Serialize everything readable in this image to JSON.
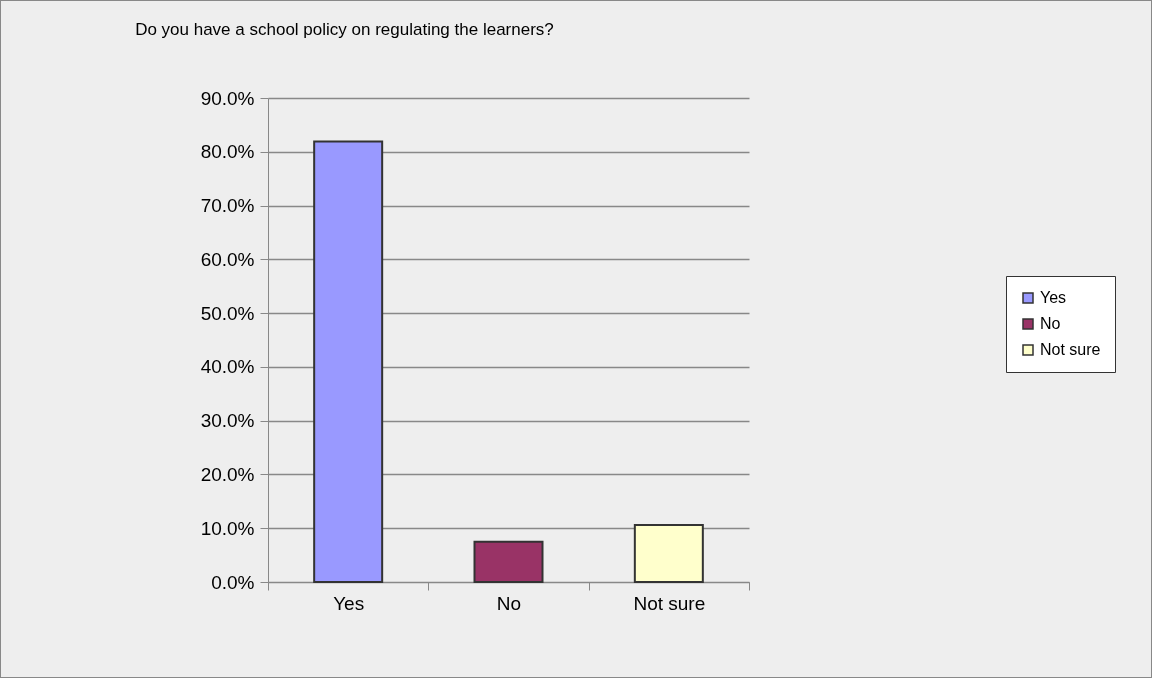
{
  "chart_data": {
    "type": "bar",
    "title": "Do you have a school policy on regulating the learners?",
    "categories": [
      "Yes",
      "No",
      "Not sure"
    ],
    "stacked": true,
    "series": [
      {
        "name": "Yes",
        "color": "#9999ff",
        "values": [
          81.9,
          null,
          null
        ]
      },
      {
        "name": "No",
        "color": "#993366",
        "values": [
          null,
          7.5,
          null
        ]
      },
      {
        "name": "Not sure",
        "color": "#ffffcc",
        "values": [
          null,
          null,
          10.6
        ]
      }
    ],
    "ylim": [
      0,
      90
    ],
    "yticks": [
      {
        "value": 0,
        "label": "0.0%"
      },
      {
        "value": 10,
        "label": "10.0%"
      },
      {
        "value": 20,
        "label": "20.0%"
      },
      {
        "value": 30,
        "label": "30.0%"
      },
      {
        "value": 40,
        "label": "40.0%"
      },
      {
        "value": 50,
        "label": "50.0%"
      },
      {
        "value": 60,
        "label": "60.0%"
      },
      {
        "value": 70,
        "label": "70.0%"
      },
      {
        "value": 80,
        "label": "80.0%"
      },
      {
        "value": 90,
        "label": "90.0%"
      }
    ],
    "grid": "y",
    "legend": "right"
  }
}
